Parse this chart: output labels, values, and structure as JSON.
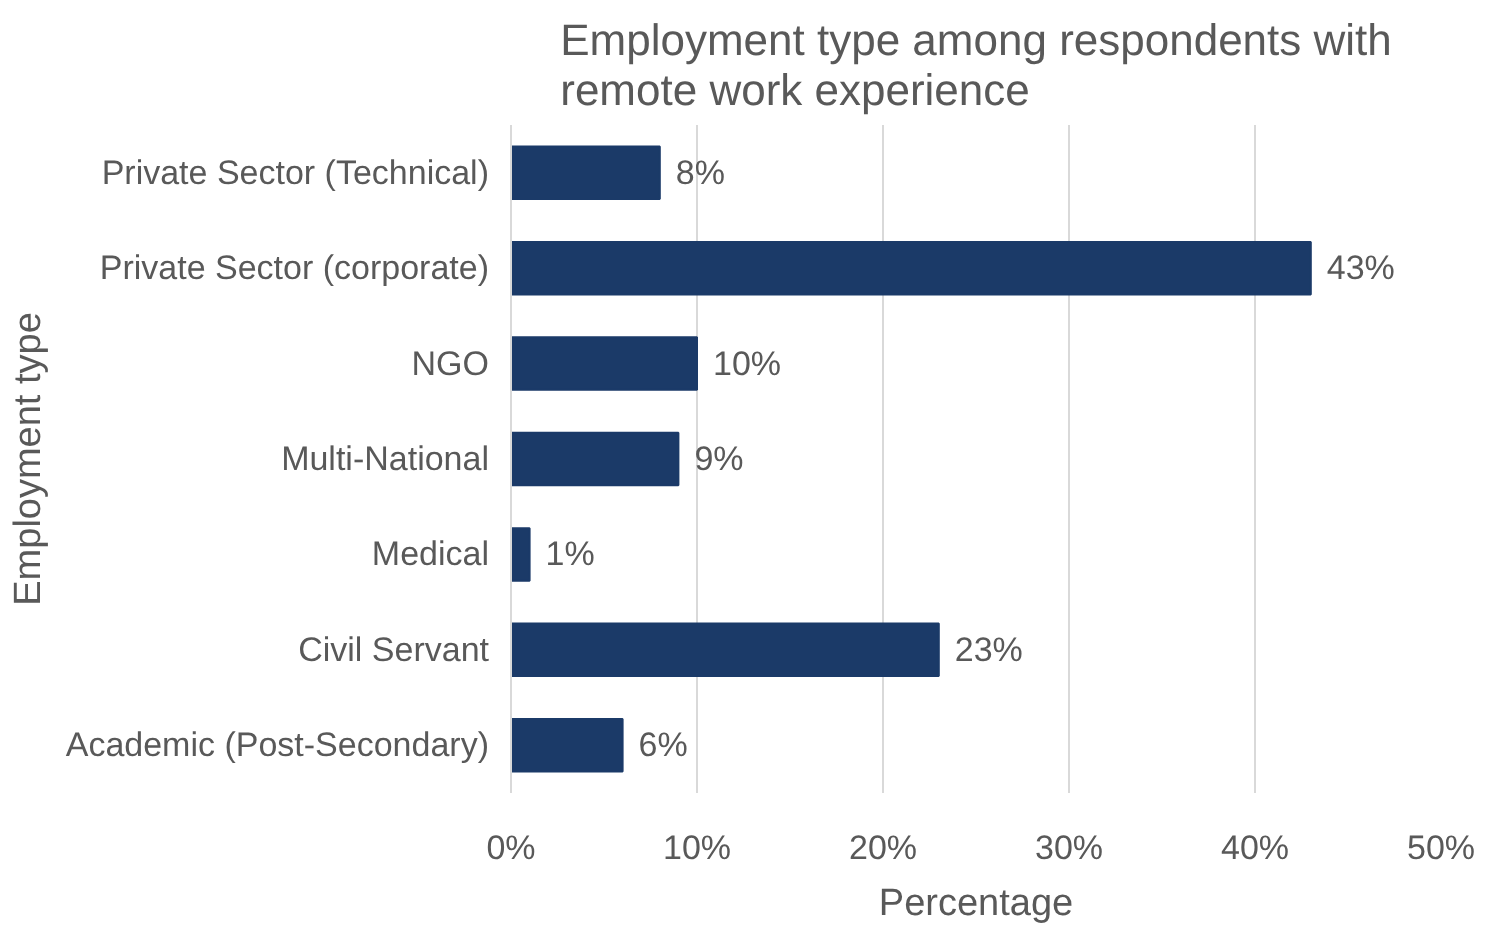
{
  "chart_data": {
    "type": "bar",
    "orientation": "horizontal",
    "title": "Employment type among respondents with\nremote work experience",
    "xlabel": "Percentage",
    "ylabel": "Employment type",
    "categories": [
      "Private Sector (Technical)",
      "Private Sector (corporate)",
      "NGO",
      "Multi-National",
      "Medical",
      "Civil Servant",
      "Academic (Post-Secondary)"
    ],
    "values": [
      8,
      43,
      10,
      9,
      1,
      23,
      6
    ],
    "value_labels": [
      "8%",
      "43%",
      "10%",
      "9%",
      "1%",
      "23%",
      "6%"
    ],
    "color": "#1b3a68",
    "xlim": [
      0,
      50
    ],
    "xticks": [
      {
        "value": 0,
        "label": "0%"
      },
      {
        "value": 10,
        "label": "10%"
      },
      {
        "value": 20,
        "label": "20%"
      },
      {
        "value": 30,
        "label": "30%"
      },
      {
        "value": 40,
        "label": "40%"
      },
      {
        "value": 50,
        "label": "50%"
      }
    ],
    "grid": "x"
  }
}
